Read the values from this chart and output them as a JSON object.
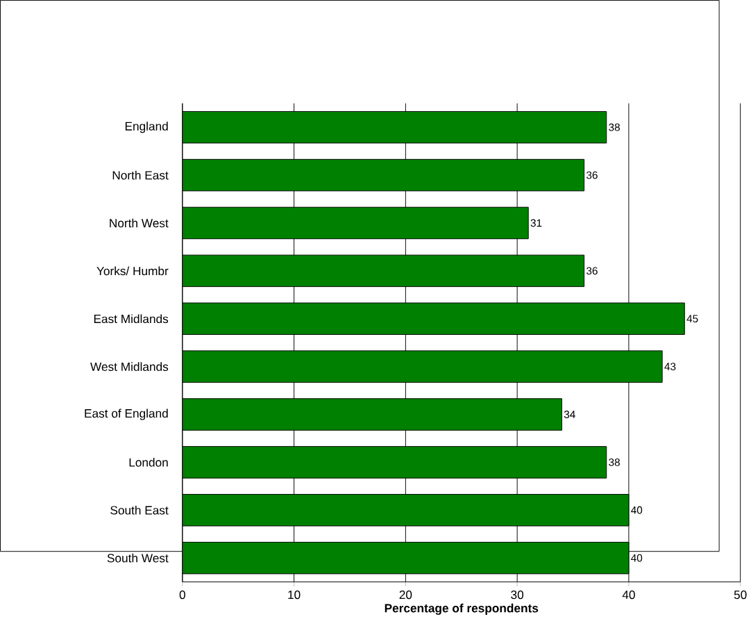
{
  "chart_data": {
    "type": "bar",
    "orientation": "horizontal",
    "xlabel": "Percentage of respondents",
    "categories": [
      "England",
      "North East",
      "North West",
      "Yorks/ Humbr",
      "East Midlands",
      "West Midlands",
      "East of England",
      "London",
      "South East",
      "South West"
    ],
    "values": [
      38,
      36,
      31,
      36,
      45,
      43,
      34,
      38,
      40,
      40
    ],
    "color": "#008000",
    "xlim": [
      0,
      50
    ],
    "xticks": [
      0,
      10,
      20,
      30,
      40,
      50
    ],
    "grid": "x",
    "data_labels": true
  }
}
